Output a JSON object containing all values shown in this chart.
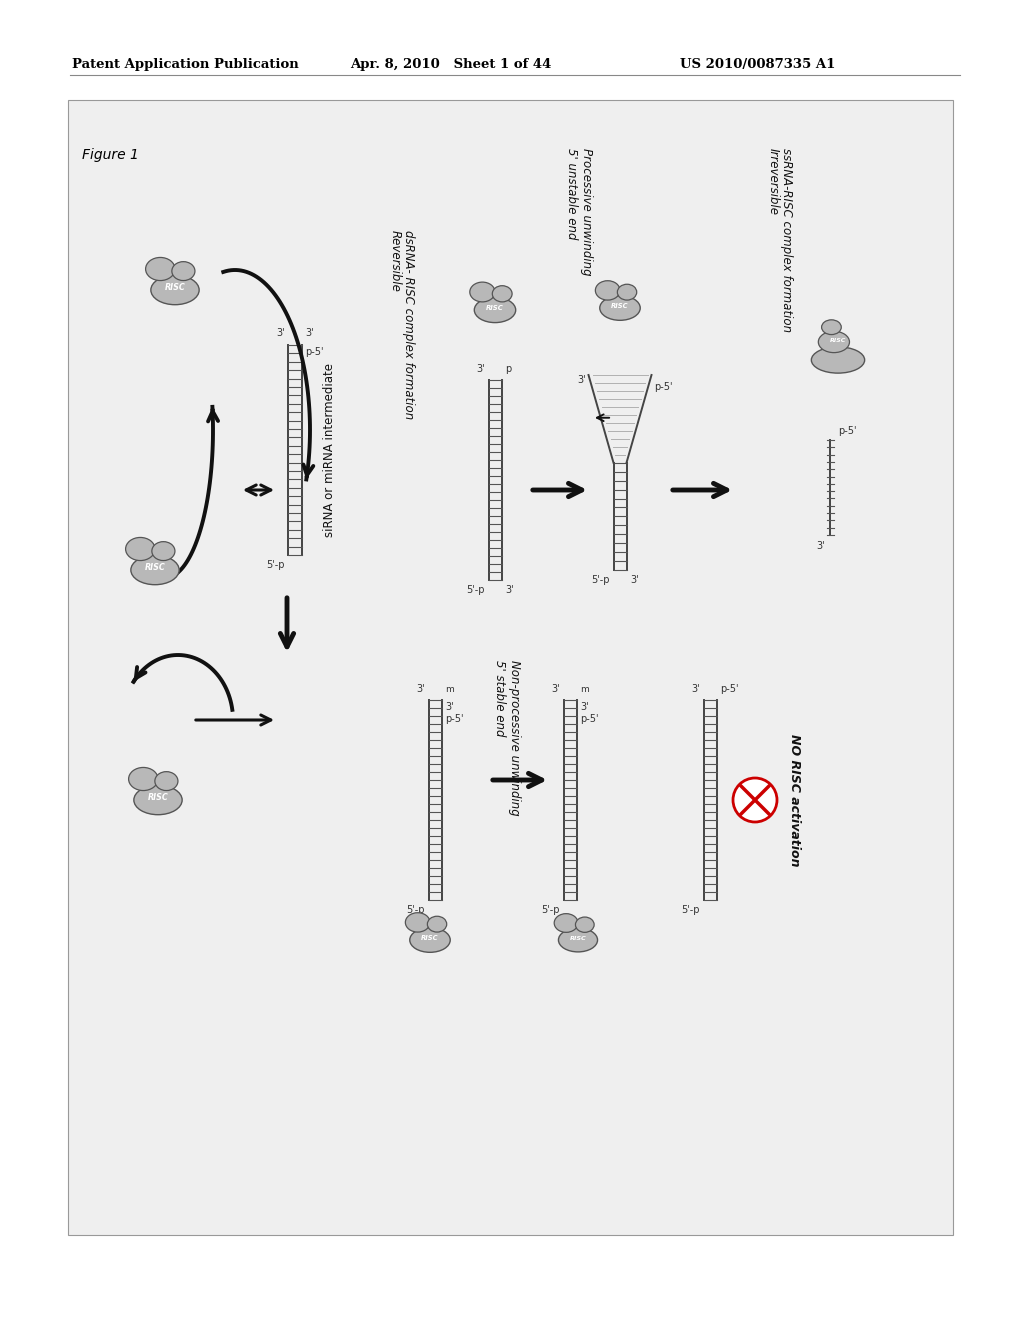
{
  "bg_color": "#ffffff",
  "box_color": "#f0f0f0",
  "header_left": "Patent Application Publication",
  "header_mid": "Apr. 8, 2010   Sheet 1 of 44",
  "header_right": "US 2010/0087335 A1",
  "figure_label": "Figure 1",
  "label_reversible_1": "Reversible",
  "label_reversible_2": "dsRNA- RISC complex formation",
  "label_5unstable_1": "5' unstable end",
  "label_5unstable_2": "Processive unwinding",
  "label_irreversible_1": "Irreversible",
  "label_irreversible_2": "ssRNA-RISC complex formation",
  "label_sirna": "siRNA or miRNA intermediate",
  "label_5stable_1": "5' stable end",
  "label_5stable_2": "Non-processive unwinding",
  "label_no_risc": "NO RISC activation",
  "risc_color": "#b8b8b8",
  "risc_edge": "#555555",
  "rna_color": "#444444",
  "tick_color": "#555555",
  "arrow_color": "#111111"
}
